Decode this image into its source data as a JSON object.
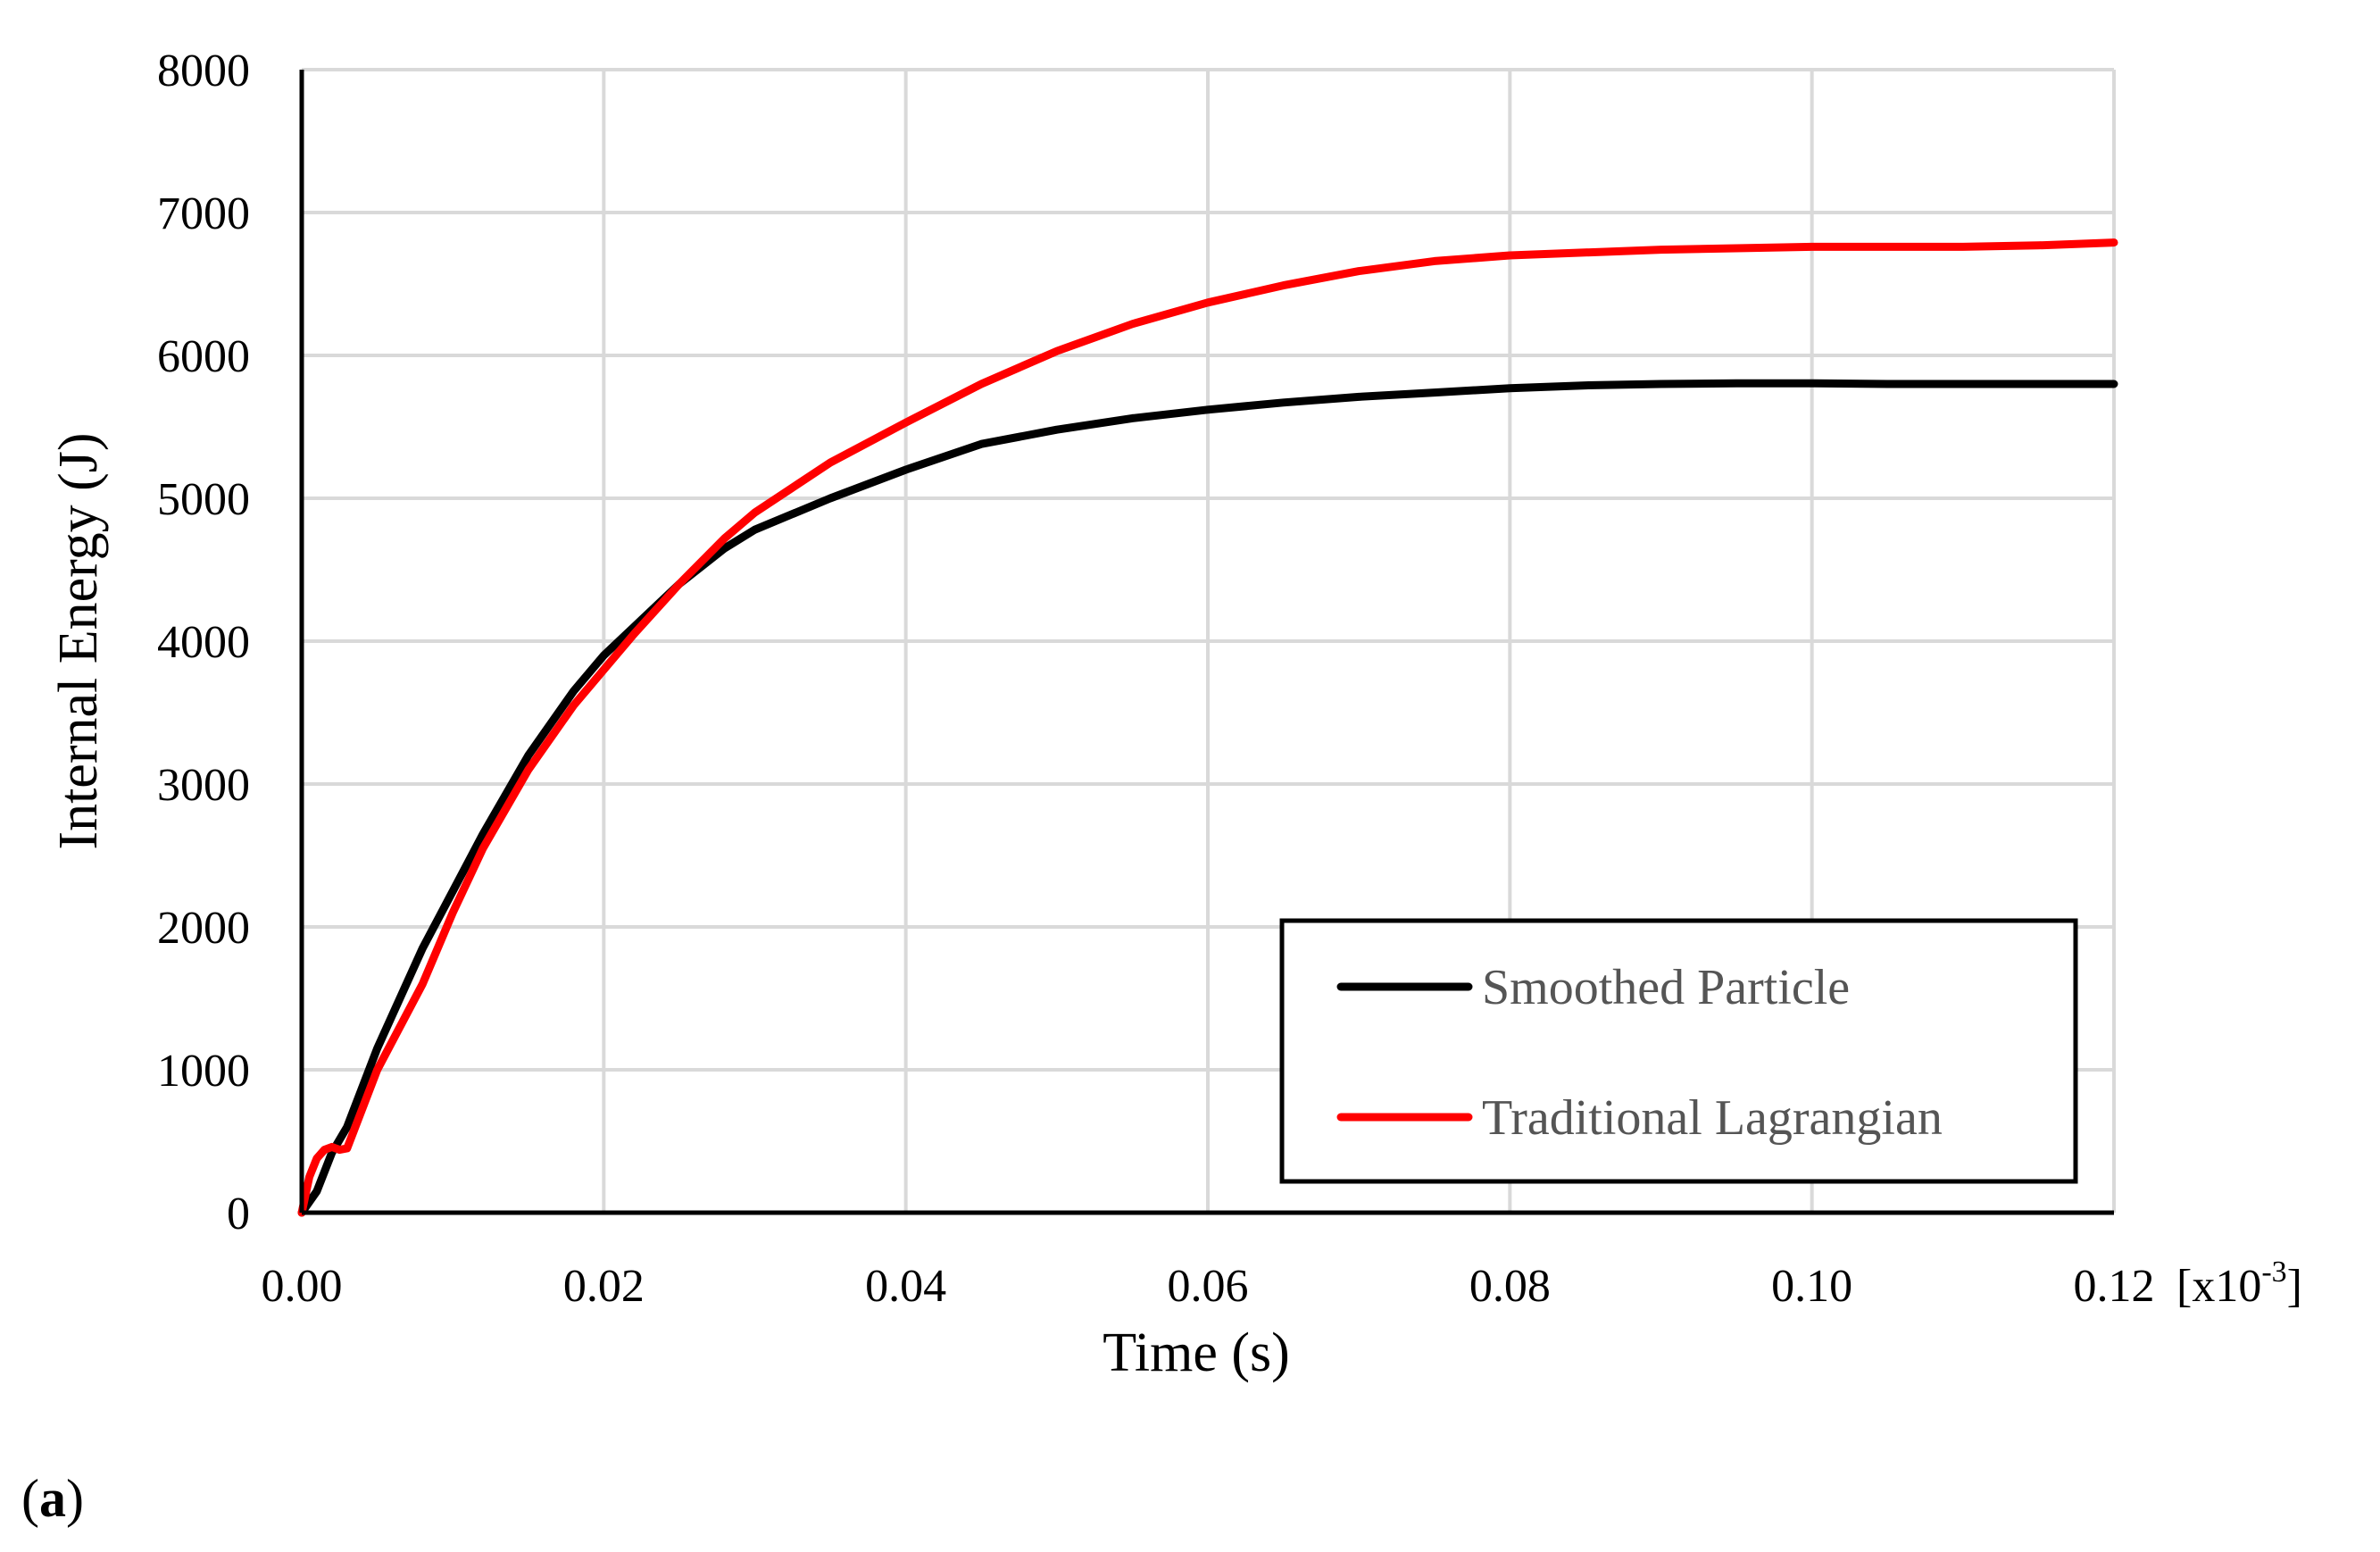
{
  "panel_label": "(a)",
  "panel_letter": "a",
  "chart_data": {
    "type": "line",
    "title": "",
    "xlabel": "Time (s)",
    "ylabel": "Internal Energy (J)",
    "x_unit_suffix": "[x10",
    "x_unit_exponent": "-3",
    "x_unit_close": "]",
    "xlim": [
      0,
      0.12
    ],
    "ylim": [
      0,
      8000
    ],
    "x_ticks": [
      0,
      0.02,
      0.04,
      0.06,
      0.08,
      0.1,
      0.12
    ],
    "x_tick_labels": [
      "0.00",
      "0.02",
      "0.04",
      "0.06",
      "0.08",
      "0.10",
      "0.12"
    ],
    "y_ticks": [
      0,
      1000,
      2000,
      3000,
      4000,
      5000,
      6000,
      7000,
      8000
    ],
    "y_tick_labels": [
      "0",
      "1000",
      "2000",
      "3000",
      "4000",
      "5000",
      "6000",
      "7000",
      "8000"
    ],
    "grid": true,
    "legend_position": "bottom-right",
    "series": [
      {
        "name": "Smoothed Particle",
        "color": "#000000",
        "x": [
          0,
          0.001,
          0.002,
          0.003,
          0.005,
          0.008,
          0.01,
          0.012,
          0.015,
          0.018,
          0.02,
          0.022,
          0.025,
          0.028,
          0.03,
          0.035,
          0.04,
          0.045,
          0.05,
          0.055,
          0.06,
          0.065,
          0.07,
          0.075,
          0.08,
          0.085,
          0.09,
          0.095,
          0.1,
          0.105,
          0.11,
          0.115,
          0.12
        ],
        "y": [
          0,
          150,
          420,
          600,
          1150,
          1850,
          2250,
          2650,
          3200,
          3650,
          3900,
          4100,
          4400,
          4650,
          4780,
          5000,
          5200,
          5380,
          5480,
          5560,
          5620,
          5670,
          5710,
          5740,
          5770,
          5790,
          5800,
          5805,
          5805,
          5800,
          5800,
          5800,
          5800
        ]
      },
      {
        "name": "Traditional Lagrangian",
        "color": "#ff0000",
        "x": [
          0,
          0.0005,
          0.001,
          0.0015,
          0.002,
          0.0025,
          0.003,
          0.005,
          0.008,
          0.01,
          0.012,
          0.015,
          0.018,
          0.02,
          0.022,
          0.025,
          0.028,
          0.03,
          0.035,
          0.04,
          0.045,
          0.05,
          0.055,
          0.06,
          0.065,
          0.07,
          0.075,
          0.08,
          0.085,
          0.09,
          0.095,
          0.1,
          0.105,
          0.11,
          0.115,
          0.12
        ],
        "y": [
          0,
          250,
          380,
          440,
          460,
          440,
          450,
          1000,
          1600,
          2100,
          2550,
          3100,
          3550,
          3800,
          4050,
          4400,
          4720,
          4900,
          5250,
          5530,
          5800,
          6030,
          6220,
          6370,
          6490,
          6590,
          6660,
          6700,
          6720,
          6740,
          6750,
          6760,
          6760,
          6760,
          6770,
          6790
        ]
      }
    ]
  }
}
